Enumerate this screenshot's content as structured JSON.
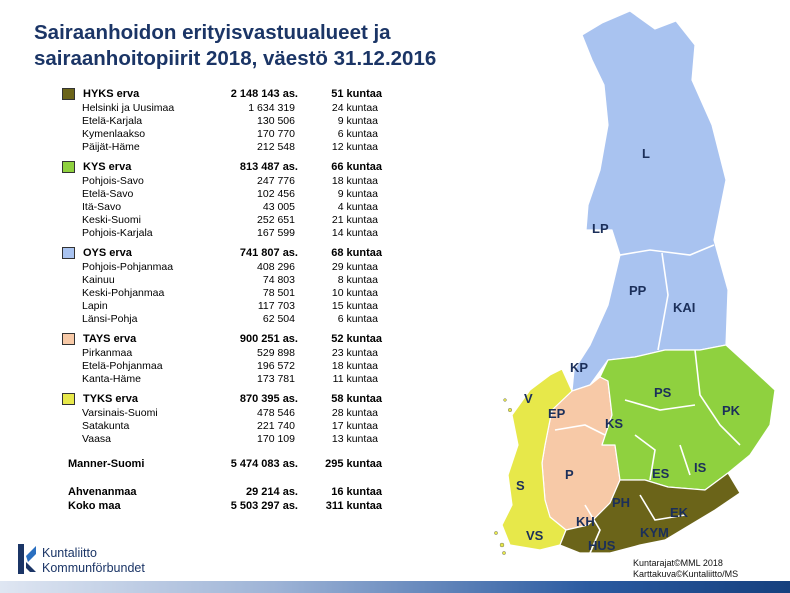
{
  "title": {
    "line1": "Sairaanhoidon erityisvastuualueet ja",
    "line2": "sairaanhoitopiirit 2018, väestö 31.12.2016"
  },
  "colors": {
    "hyks": "#6b6419",
    "kys": "#8fd13f",
    "oys": "#a9c3f0",
    "tays": "#f7c9a7",
    "tyks": "#e7e84a",
    "title": "#1b3566"
  },
  "groups": [
    {
      "name": "HYKS erva",
      "pop": "2 148 143 as.",
      "mun": "51 kuntaa",
      "districts": [
        {
          "name": "Helsinki  ja Uusimaa",
          "pop": "1 634 319",
          "mun": "24 kuntaa"
        },
        {
          "name": "Etelä-Karjala",
          "pop": "130 506",
          "mun": "9 kuntaa"
        },
        {
          "name": "Kymenlaakso",
          "pop": "170 770",
          "mun": "6 kuntaa"
        },
        {
          "name": "Päijät-Häme",
          "pop": "212 548",
          "mun": "12 kuntaa"
        }
      ]
    },
    {
      "name": "KYS erva",
      "pop": "813 487 as.",
      "mun": "66 kuntaa",
      "districts": [
        {
          "name": "Pohjois-Savo",
          "pop": "247 776",
          "mun": "18 kuntaa"
        },
        {
          "name": "Etelä-Savo",
          "pop": "102 456",
          "mun": "9 kuntaa"
        },
        {
          "name": "Itä-Savo",
          "pop": "43 005",
          "mun": "4 kuntaa"
        },
        {
          "name": "Keski-Suomi",
          "pop": "252 651",
          "mun": "21 kuntaa"
        },
        {
          "name": "Pohjois-Karjala",
          "pop": "167 599",
          "mun": "14 kuntaa"
        }
      ]
    },
    {
      "name": "OYS erva",
      "pop": "741 807 as.",
      "mun": "68 kuntaa",
      "districts": [
        {
          "name": "Pohjois-Pohjanmaa",
          "pop": "408 296",
          "mun": "29 kuntaa"
        },
        {
          "name": "Kainuu",
          "pop": "74 803",
          "mun": "8 kuntaa"
        },
        {
          "name": "Keski-Pohjanmaa",
          "pop": "78 501",
          "mun": "10 kuntaa"
        },
        {
          "name": "Lapin",
          "pop": "117 703",
          "mun": "15 kuntaa"
        },
        {
          "name": "Länsi-Pohja",
          "pop": "62 504",
          "mun": "6 kuntaa"
        }
      ]
    },
    {
      "name": "TAYS erva",
      "pop": "900 251 as.",
      "mun": "52 kuntaa",
      "districts": [
        {
          "name": "Pirkanmaa",
          "pop": "529 898",
          "mun": "23 kuntaa"
        },
        {
          "name": "Etelä-Pohjanmaa",
          "pop": "196 572",
          "mun": "18 kuntaa"
        },
        {
          "name": "Kanta-Häme",
          "pop": "173 781",
          "mun": "11 kuntaa"
        }
      ]
    },
    {
      "name": "TYKS erva",
      "pop": "870 395 as.",
      "mun": "58 kuntaa",
      "districts": [
        {
          "name": "Varsinais-Suomi",
          "pop": "478 546",
          "mun": "28 kuntaa"
        },
        {
          "name": "Satakunta",
          "pop": "221 740",
          "mun": "17 kuntaa"
        },
        {
          "name": "Vaasa",
          "pop": "170 109",
          "mun": "13 kuntaa"
        }
      ]
    }
  ],
  "totals": {
    "mainland": {
      "name": "Manner-Suomi",
      "pop": "5 474 083 as.",
      "mun": "295 kuntaa"
    },
    "aland": {
      "name": "Ahvenanmaa",
      "pop": "29 214 as.",
      "mun": "16 kuntaa"
    },
    "whole": {
      "name": "Koko maa",
      "pop": "5 503 297 as.",
      "mun": "311 kuntaa"
    }
  },
  "map_labels": {
    "L": "L",
    "LP": "LP",
    "PP": "PP",
    "KAI": "KAI",
    "KP": "KP",
    "PS": "PS",
    "PK": "PK",
    "V": "V",
    "EP": "EP",
    "KS": "KS",
    "ES": "ES",
    "IS": "IS",
    "P": "P",
    "S": "S",
    "PH": "PH",
    "EK": "EK",
    "KH": "KH",
    "KYM": "KYM",
    "VS": "VS",
    "HUS": "HUS"
  },
  "logo": {
    "line1": "Kuntaliitto",
    "line2": "Kommunförbundet"
  },
  "credits": {
    "line1": "Kuntarajat©MML 2018",
    "line2": "Karttakuva©Kuntaliitto/MS"
  }
}
